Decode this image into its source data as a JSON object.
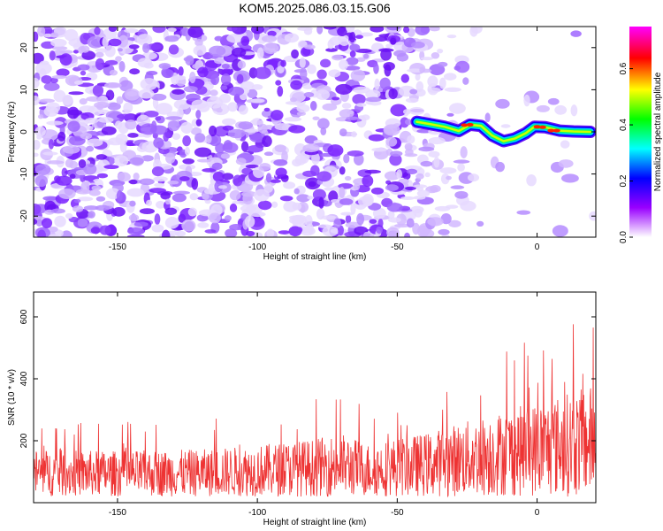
{
  "title": "KOM5.2025.086.03.15.G06",
  "chart_data": [
    {
      "type": "heatmap",
      "xlabel": "Height of straight line (km)",
      "ylabel": "Frequency (Hz)",
      "xlim": [
        -180,
        21
      ],
      "ylim": [
        -25,
        25
      ],
      "xticks": [
        -150,
        -100,
        -50,
        0
      ],
      "yticks": [
        -20,
        -10,
        0,
        10,
        20
      ],
      "colorbar": {
        "label": "Normalized spectral amplitude",
        "range": [
          0,
          0.75
        ],
        "ticks": [
          "0.0",
          "0.2",
          "0.4",
          "0.6"
        ],
        "colormap": [
          "#ffffff",
          "#9900ff",
          "#0000ff",
          "#00ffff",
          "#00ff00",
          "#ffff00",
          "#ff0000",
          "#ff00ff"
        ]
      },
      "ridge": {
        "description_points_km_hz": [
          [
            -43,
            2.4
          ],
          [
            -38,
            1.8
          ],
          [
            -33,
            1.2
          ],
          [
            -28,
            0.2
          ],
          [
            -24,
            1.7
          ],
          [
            -20,
            1.4
          ],
          [
            -16,
            -0.9
          ],
          [
            -12,
            -2.2
          ],
          [
            -8,
            -1.6
          ],
          [
            -4,
            -0.3
          ],
          [
            -1,
            1.2
          ],
          [
            3,
            1.1
          ],
          [
            8,
            0.3
          ],
          [
            13,
            0.1
          ],
          [
            19,
            0.0
          ]
        ],
        "peak_amplitude": 0.75
      }
    },
    {
      "type": "line",
      "xlabel": "Height of straight line (km)",
      "ylabel": "SNR (10 * v/v)",
      "xlim": [
        -180,
        21
      ],
      "ylim": [
        0,
        680
      ],
      "xticks": [
        -150,
        -100,
        -50,
        0
      ],
      "yticks": [
        200,
        400,
        600
      ],
      "series": [
        {
          "color": "#ee3333",
          "envelope_km_snr": [
            [
              -180,
              160
            ],
            [
              -150,
              155
            ],
            [
              -120,
              160
            ],
            [
              -100,
              175
            ],
            [
              -80,
              195
            ],
            [
              -70,
              215
            ],
            [
              -60,
              180
            ],
            [
              -50,
              200
            ],
            [
              -40,
              215
            ],
            [
              -30,
              245
            ],
            [
              -20,
              270
            ],
            [
              -10,
              300
            ],
            [
              0,
              320
            ],
            [
              10,
              350
            ],
            [
              21,
              380
            ]
          ]
        }
      ]
    }
  ]
}
